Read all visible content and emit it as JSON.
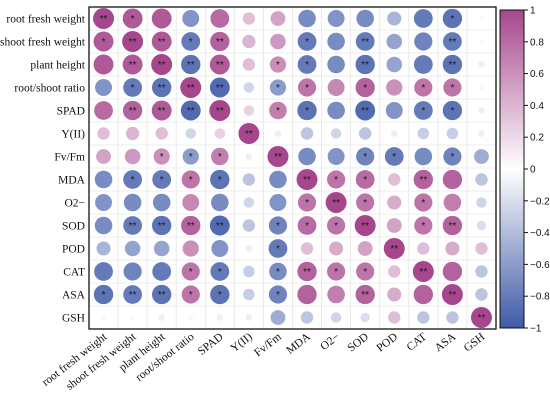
{
  "chart_data": {
    "type": "heatmap",
    "style": "circle correlation matrix",
    "labels": [
      "root fresh weight",
      "shoot fresh weight",
      "plant height",
      "root/shoot ratio",
      "SPAD",
      "Y(II)",
      "Fv/Fm",
      "MDA",
      "O2−",
      "SOD",
      "POD",
      "CAT",
      "ASA",
      "GSH"
    ],
    "matrix": [
      [
        1.0,
        0.9,
        0.9,
        -0.65,
        0.8,
        0.35,
        0.5,
        -0.7,
        -0.65,
        -0.7,
        -0.45,
        -0.8,
        -0.85,
        0.05
      ],
      [
        0.9,
        1.0,
        0.9,
        -0.8,
        0.85,
        0.4,
        0.55,
        -0.8,
        -0.7,
        -0.8,
        -0.55,
        -0.75,
        -0.8,
        0.05
      ],
      [
        0.9,
        0.9,
        1.0,
        -0.85,
        0.9,
        0.35,
        0.6,
        -0.8,
        -0.7,
        -0.85,
        -0.55,
        -0.8,
        -0.85,
        0.1
      ],
      [
        -0.65,
        -0.8,
        -0.85,
        1.0,
        -0.9,
        -0.25,
        -0.6,
        0.75,
        0.65,
        0.85,
        0.6,
        0.75,
        0.75,
        -0.05
      ],
      [
        0.8,
        0.85,
        0.9,
        -0.9,
        1.0,
        0.25,
        0.7,
        -0.85,
        -0.7,
        -0.9,
        -0.65,
        -0.8,
        -0.85,
        0.1
      ],
      [
        0.35,
        0.4,
        0.35,
        -0.25,
        0.25,
        1.0,
        0.1,
        -0.35,
        -0.25,
        -0.35,
        -0.1,
        -0.3,
        -0.3,
        0.1
      ],
      [
        0.5,
        0.55,
        0.6,
        -0.6,
        0.7,
        0.1,
        1.0,
        -0.7,
        -0.65,
        -0.75,
        -0.8,
        -0.7,
        -0.75,
        -0.5
      ],
      [
        -0.7,
        -0.8,
        -0.8,
        0.75,
        -0.85,
        -0.35,
        -0.7,
        1.0,
        0.75,
        0.8,
        0.35,
        0.85,
        0.85,
        -0.35
      ],
      [
        -0.65,
        -0.7,
        -0.7,
        0.65,
        -0.7,
        -0.25,
        -0.65,
        0.75,
        1.0,
        0.75,
        0.45,
        0.75,
        0.7,
        -0.25
      ],
      [
        -0.7,
        -0.8,
        -0.85,
        0.85,
        -0.9,
        -0.35,
        -0.75,
        0.8,
        0.75,
        1.0,
        0.5,
        0.75,
        0.85,
        -0.2
      ],
      [
        -0.45,
        -0.55,
        -0.55,
        0.6,
        -0.65,
        -0.1,
        -0.8,
        0.35,
        0.45,
        0.5,
        1.0,
        0.35,
        0.45,
        0.35
      ],
      [
        -0.8,
        -0.75,
        -0.8,
        0.75,
        -0.8,
        -0.3,
        -0.7,
        0.85,
        0.75,
        0.75,
        0.35,
        1.0,
        0.85,
        -0.35
      ],
      [
        -0.85,
        -0.8,
        -0.85,
        0.75,
        -0.85,
        -0.3,
        -0.75,
        0.85,
        0.7,
        0.85,
        0.45,
        0.85,
        1.0,
        -0.35
      ],
      [
        0.05,
        0.05,
        0.1,
        -0.05,
        0.1,
        0.1,
        -0.5,
        -0.35,
        -0.25,
        -0.2,
        0.35,
        -0.35,
        -0.35,
        1.0
      ]
    ],
    "significance": [
      [
        "**",
        "*",
        "",
        "",
        "",
        "",
        "",
        "",
        "",
        "",
        "",
        "",
        "*",
        ""
      ],
      [
        "*",
        "**",
        "**",
        "*",
        "**",
        "",
        "",
        "*",
        "",
        "**",
        "",
        "",
        "**",
        ""
      ],
      [
        "",
        "**",
        "**",
        "**",
        "**",
        "",
        "*",
        "*",
        "",
        "**",
        "",
        "",
        "**",
        ""
      ],
      [
        "",
        "*",
        "**",
        "**",
        "**",
        "",
        "*",
        "*",
        "",
        "*",
        "",
        "*",
        "*",
        ""
      ],
      [
        "",
        "**",
        "**",
        "**",
        "**",
        "",
        "*",
        "*",
        "",
        "**",
        "",
        "*",
        "*",
        ""
      ],
      [
        "",
        "",
        "",
        "",
        "",
        "**",
        "",
        "",
        "",
        "",
        "",
        "",
        "",
        ""
      ],
      [
        "",
        "",
        "*",
        "*",
        "*",
        "",
        "**",
        "",
        "",
        "*",
        "*",
        "",
        "*",
        ""
      ],
      [
        "",
        "*",
        "*",
        "*",
        "*",
        "",
        "",
        "**",
        "*",
        "*",
        "",
        "**",
        "",
        ""
      ],
      [
        "",
        "",
        "",
        "",
        "",
        "",
        "",
        "*",
        "**",
        "*",
        "",
        "*",
        "",
        ""
      ],
      [
        "",
        "**",
        "**",
        "**",
        "**",
        "",
        "*",
        "*",
        "*",
        "**",
        "",
        "*",
        "**",
        ""
      ],
      [
        "",
        "",
        "",
        "",
        "",
        "",
        "*",
        "",
        "",
        "",
        "**",
        "",
        "",
        ""
      ],
      [
        "",
        "",
        "",
        "*",
        "*",
        "",
        "*",
        "**",
        "*",
        "*",
        "",
        "**",
        "",
        ""
      ],
      [
        "*",
        "**",
        "**",
        "*",
        "*",
        "",
        "*",
        "",
        "",
        "**",
        "",
        "",
        "**",
        ""
      ],
      [
        "",
        "",
        "",
        "",
        "",
        "",
        "",
        "",
        "",
        "",
        "",
        "",
        "",
        "**"
      ]
    ],
    "colorbar": {
      "range": [
        -1,
        1
      ],
      "ticks": [
        1,
        0.8,
        0.6,
        0.4,
        0.2,
        0,
        -0.2,
        -0.4,
        -0.6,
        -0.8,
        -1
      ],
      "tick_labels": [
        "1",
        "0.8",
        "0.6",
        "0.4",
        "0.2",
        "0",
        "−0.2",
        "−0.4",
        "−0.6",
        "−0.8",
        "−1"
      ],
      "colors": {
        "negative": "#3f5aa7",
        "zero": "#ffffff",
        "positive": "#a6468c"
      }
    },
    "grid": true
  }
}
